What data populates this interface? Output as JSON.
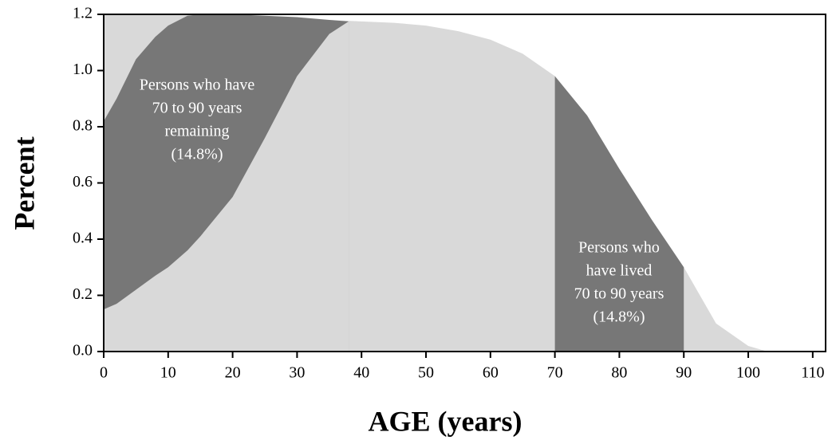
{
  "chart_data": {
    "type": "area",
    "x_label": "AGE (years)",
    "y_label": "Percent",
    "xlim": [
      0,
      112
    ],
    "xticks": [
      0,
      10,
      20,
      30,
      40,
      50,
      60,
      70,
      80,
      90,
      100,
      110
    ],
    "ylim": [
      0,
      1.2
    ],
    "yticks": [
      {
        "value": 0,
        "label": "0.0"
      },
      0.2,
      0.4,
      0.6,
      0.8,
      {
        "value": 1,
        "label": "1.0"
      },
      1.2
    ],
    "series": [
      {
        "color": "#d9d9d9",
        "x": [
          0,
          5,
          10,
          15,
          20,
          25,
          30,
          35,
          40,
          45,
          50,
          55,
          60,
          65,
          70,
          75,
          80,
          85,
          90,
          95,
          100,
          103
        ],
        "values": [
          1.2,
          1.2,
          1.2,
          1.2,
          1.195,
          1.19,
          1.185,
          1.18,
          1.175,
          1.17,
          1.16,
          1.14,
          1.11,
          1.06,
          0.98,
          0.84,
          0.65,
          0.47,
          0.3,
          0.1,
          0.02,
          0
        ]
      },
      {
        "color": "#777777",
        "x": [
          0,
          2,
          5,
          8,
          10,
          13,
          15,
          20,
          25,
          30,
          35,
          38
        ],
        "values": [
          0.82,
          0.9,
          1.04,
          1.12,
          1.16,
          1.195,
          1.2,
          1.2,
          1.195,
          1.19,
          1.18,
          1.175
        ]
      },
      {
        "color": "#d9d9d9",
        "x": [
          0,
          2,
          5,
          8,
          10,
          13,
          15,
          20,
          25,
          30,
          35,
          38
        ],
        "values": [
          0.15,
          0.17,
          0.22,
          0.27,
          0.3,
          0.36,
          0.41,
          0.55,
          0.76,
          0.98,
          1.13,
          1.175
        ]
      },
      {
        "color": "#777777",
        "x": [
          70,
          75,
          80,
          85,
          90
        ],
        "values": [
          0.98,
          0.84,
          0.65,
          0.47,
          0.3
        ]
      }
    ],
    "annotations": [
      [
        "Persons who have",
        "70 to 90 years",
        "remaining",
        "(14.8%)"
      ],
      [
        "Persons who",
        "have lived",
        "70 to 90 years",
        "(14.8%)"
      ]
    ]
  }
}
